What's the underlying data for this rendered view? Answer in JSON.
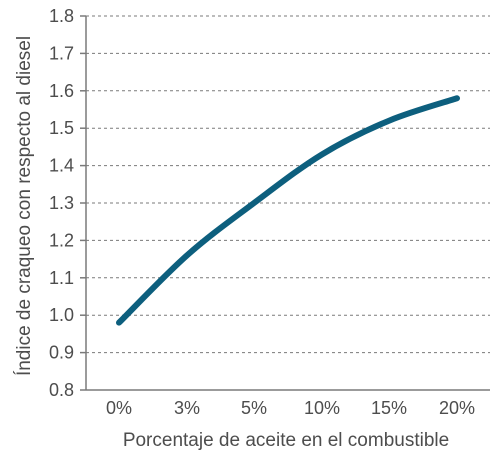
{
  "chart_data": {
    "type": "line",
    "xlabel": "Porcentaje de aceite en el combustible",
    "ylabel": "Índice de craqueo con respecto al diesel",
    "categories": [
      "0%",
      "3%",
      "5%",
      "10%",
      "15%",
      "20%"
    ],
    "ylim": [
      0.8,
      1.8
    ],
    "yticks": [
      "0.8",
      "0.9",
      "1.0",
      "1.1",
      "1.2",
      "1.3",
      "1.4",
      "1.5",
      "1.6",
      "1.7",
      "1.8"
    ],
    "grid": "horizontal dashed",
    "series": [
      {
        "values": [
          0.98,
          1.16,
          1.3,
          1.43,
          1.52,
          1.58
        ],
        "color": "#0d5f7e"
      }
    ]
  }
}
